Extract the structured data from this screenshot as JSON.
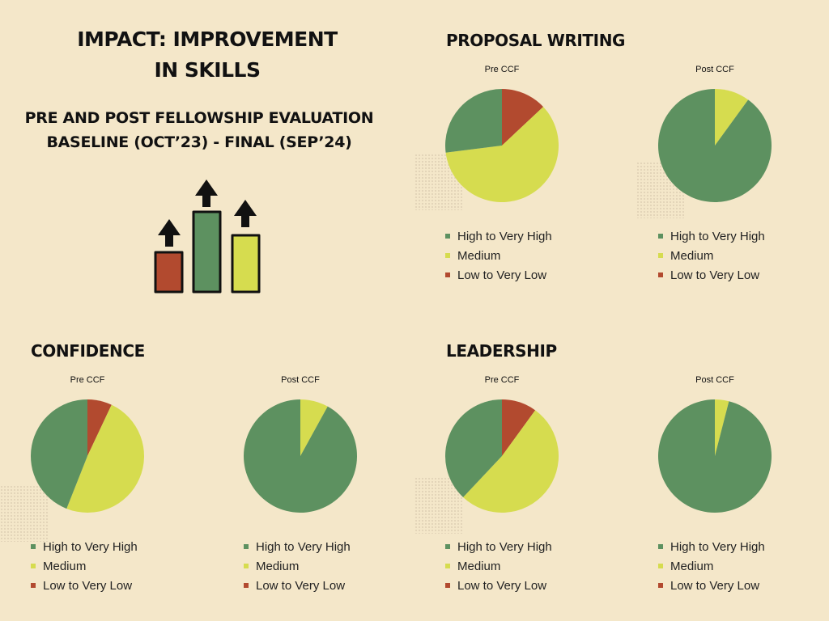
{
  "page": {
    "title_line1": "IMPACT: IMPROVEMENT",
    "title_line2": "IN SKILLS",
    "subtitle_line1": "PRE AND POST FELLOWSHIP EVALUATION",
    "subtitle_line2": "BASELINE (OCT’23) -  FINAL (SEP’24)"
  },
  "colors": {
    "high": "#5d9160",
    "medium": "#d6dc4f",
    "low": "#b24a2f"
  },
  "sections": [
    {
      "title": "PROPOSAL WRITING"
    },
    {
      "title": "CONFIDENCE"
    },
    {
      "title": "LEADERSHIP"
    }
  ],
  "chart_data": [
    {
      "type": "pie",
      "section": "PROPOSAL WRITING",
      "title": "Pre CCF",
      "categories": [
        "High to Very High",
        "Medium",
        "Low to Very Low"
      ],
      "values": [
        27,
        60,
        13
      ]
    },
    {
      "type": "pie",
      "section": "PROPOSAL WRITING",
      "title": "Post CCF",
      "categories": [
        "High to Very High",
        "Medium",
        "Low to Very Low"
      ],
      "values": [
        90,
        10,
        0
      ]
    },
    {
      "type": "pie",
      "section": "CONFIDENCE",
      "title": "Pre CCF",
      "categories": [
        "High to Very High",
        "Medium",
        "Low to Very Low"
      ],
      "values": [
        44,
        49,
        7
      ]
    },
    {
      "type": "pie",
      "section": "CONFIDENCE",
      "title": "Post CCF",
      "categories": [
        "High to Very High",
        "Medium",
        "Low to Very Low"
      ],
      "values": [
        92,
        8,
        0
      ]
    },
    {
      "type": "pie",
      "section": "LEADERSHIP",
      "title": "Pre CCF",
      "categories": [
        "High to Very High",
        "Medium",
        "Low to Very Low"
      ],
      "values": [
        38,
        52,
        10
      ]
    },
    {
      "type": "pie",
      "section": "LEADERSHIP",
      "title": "Post CCF",
      "categories": [
        "High to Very High",
        "Medium",
        "Low to Very Low"
      ],
      "values": [
        96,
        4,
        0
      ]
    }
  ]
}
